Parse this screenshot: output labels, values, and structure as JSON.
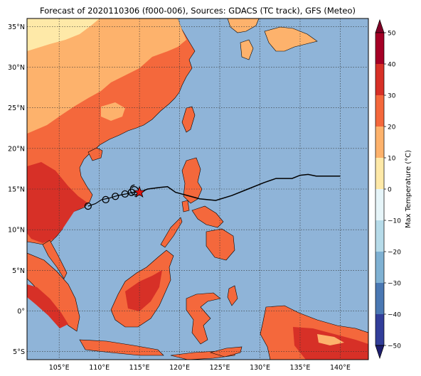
{
  "title": "Forecast of 2020110306 (f000-006), Sources: GDACS (TC track), GFS (Meteo)",
  "map": {
    "lon_range": [
      101,
      143.5
    ],
    "lat_range": [
      -6,
      36
    ],
    "lon_ticks": [
      {
        "value": 105,
        "label": "105°E"
      },
      {
        "value": 110,
        "label": "110°E"
      },
      {
        "value": 115,
        "label": "115°E"
      },
      {
        "value": 120,
        "label": "120°E"
      },
      {
        "value": 125,
        "label": "125°E"
      },
      {
        "value": 130,
        "label": "130°E"
      },
      {
        "value": 135,
        "label": "135°E"
      },
      {
        "value": 140,
        "label": "140°E"
      }
    ],
    "lat_ticks": [
      {
        "value": 35,
        "label": "35°N"
      },
      {
        "value": 30,
        "label": "30°N"
      },
      {
        "value": 25,
        "label": "25°N"
      },
      {
        "value": 20,
        "label": "20°N"
      },
      {
        "value": 15,
        "label": "15°N"
      },
      {
        "value": 10,
        "label": "10°N"
      },
      {
        "value": 5,
        "label": "5°N"
      },
      {
        "value": 0,
        "label": "0°"
      },
      {
        "value": -5,
        "label": "5°S"
      }
    ],
    "grid": true,
    "colors": {
      "ocean": "#8fb4d8",
      "land_20_30": "#f4683c",
      "land_30_40": "#d73027",
      "land_10_20": "#fdb26c",
      "land_0_10": "#fee9a8"
    }
  },
  "track": {
    "forecast_line": [
      [
        115.0,
        14.6
      ],
      [
        116.0,
        15.0
      ],
      [
        117.5,
        15.2
      ],
      [
        118.5,
        15.3
      ],
      [
        119.5,
        14.6
      ],
      [
        121.0,
        14.2
      ],
      [
        122.5,
        13.8
      ],
      [
        124.5,
        13.6
      ],
      [
        126.5,
        14.2
      ],
      [
        128.5,
        15.0
      ],
      [
        130.5,
        15.8
      ],
      [
        132.0,
        16.3
      ],
      [
        134.0,
        16.3
      ],
      [
        135.0,
        16.7
      ],
      [
        136.0,
        16.8
      ],
      [
        137.0,
        16.6
      ],
      [
        140.0,
        16.6
      ]
    ],
    "past_line": [
      [
        108.6,
        12.9
      ],
      [
        109.5,
        13.2
      ],
      [
        110.3,
        13.7
      ],
      [
        111.3,
        13.9
      ],
      [
        112.3,
        14.2
      ],
      [
        113.3,
        14.4
      ],
      [
        114.1,
        14.6
      ],
      [
        115.0,
        14.6
      ]
    ],
    "positions": [
      [
        108.6,
        12.9
      ],
      [
        110.8,
        13.7
      ],
      [
        112.0,
        14.1
      ],
      [
        113.2,
        14.4
      ],
      [
        114.0,
        14.6
      ]
    ],
    "cyclone_symbol": [
      114.4,
      14.8
    ],
    "current": [
      115.0,
      14.6
    ]
  },
  "colorbar": {
    "label": "Max Temperature (°C)",
    "ticks": [
      "50",
      "40",
      "30",
      "20",
      "10",
      "0",
      "−10",
      "−20",
      "−30",
      "−40",
      "−50"
    ],
    "colors": [
      "#800026",
      "#a50026",
      "#d73027",
      "#f4683c",
      "#fdb26c",
      "#fee9a8",
      "#e6f5f9",
      "#b6dbe9",
      "#7fb1d3",
      "#4a78b3",
      "#323e9a",
      "#1e1e6e"
    ]
  }
}
